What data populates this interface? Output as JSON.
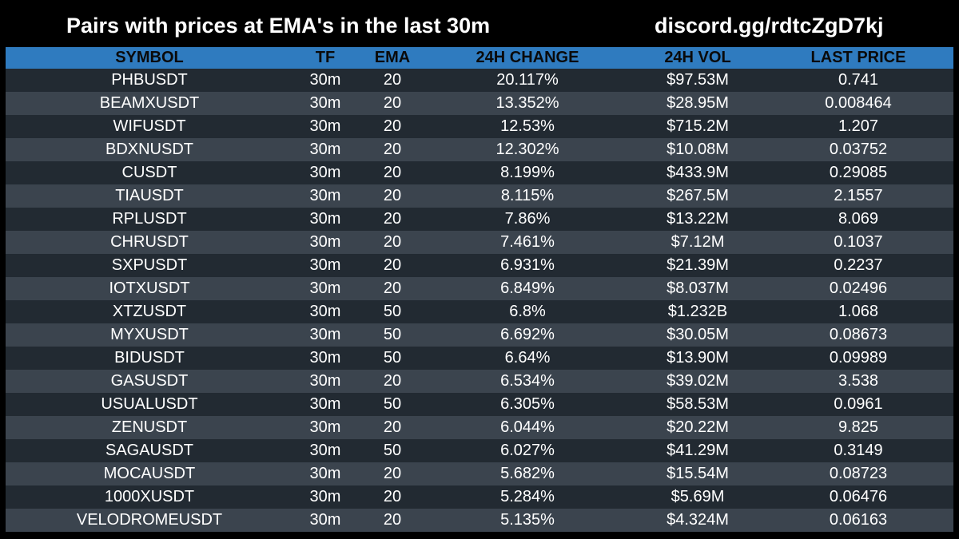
{
  "header": {
    "title": "Pairs with prices at EMA's in the last 30m",
    "discord": "discord.gg/rdtcZgD7kj"
  },
  "table": {
    "columns": [
      "SYMBOL",
      "TF",
      "EMA",
      "24H CHANGE",
      "24H VOL",
      "LAST PRICE"
    ],
    "rows": [
      [
        "PHBUSDT",
        "30m",
        "20",
        "20.117%",
        "$97.53M",
        "0.741"
      ],
      [
        "BEAMXUSDT",
        "30m",
        "20",
        "13.352%",
        "$28.95M",
        "0.008464"
      ],
      [
        "WIFUSDT",
        "30m",
        "20",
        "12.53%",
        "$715.2M",
        "1.207"
      ],
      [
        "BDXNUSDT",
        "30m",
        "20",
        "12.302%",
        "$10.08M",
        "0.03752"
      ],
      [
        "CUSDT",
        "30m",
        "20",
        "8.199%",
        "$433.9M",
        "0.29085"
      ],
      [
        "TIAUSDT",
        "30m",
        "20",
        "8.115%",
        "$267.5M",
        "2.1557"
      ],
      [
        "RPLUSDT",
        "30m",
        "20",
        "7.86%",
        "$13.22M",
        "8.069"
      ],
      [
        "CHRUSDT",
        "30m",
        "20",
        "7.461%",
        "$7.12M",
        "0.1037"
      ],
      [
        "SXPUSDT",
        "30m",
        "20",
        "6.931%",
        "$21.39M",
        "0.2237"
      ],
      [
        "IOTXUSDT",
        "30m",
        "20",
        "6.849%",
        "$8.037M",
        "0.02496"
      ],
      [
        "XTZUSDT",
        "30m",
        "50",
        "6.8%",
        "$1.232B",
        "1.068"
      ],
      [
        "MYXUSDT",
        "30m",
        "50",
        "6.692%",
        "$30.05M",
        "0.08673"
      ],
      [
        "BIDUSDT",
        "30m",
        "50",
        "6.64%",
        "$13.90M",
        "0.09989"
      ],
      [
        "GASUSDT",
        "30m",
        "20",
        "6.534%",
        "$39.02M",
        "3.538"
      ],
      [
        "USUALUSDT",
        "30m",
        "50",
        "6.305%",
        "$58.53M",
        "0.0961"
      ],
      [
        "ZENUSDT",
        "30m",
        "20",
        "6.044%",
        "$20.22M",
        "9.825"
      ],
      [
        "SAGAUSDT",
        "30m",
        "50",
        "6.027%",
        "$41.29M",
        "0.3149"
      ],
      [
        "MOCAUSDT",
        "30m",
        "20",
        "5.682%",
        "$15.54M",
        "0.08723"
      ],
      [
        "1000XUSDT",
        "30m",
        "20",
        "5.284%",
        "$5.69M",
        "0.06476"
      ],
      [
        "VELODROMEUSDT",
        "30m",
        "20",
        "5.135%",
        "$4.324M",
        "0.06163"
      ]
    ]
  },
  "colors": {
    "background": "#000000",
    "header_bar": "#2f7bbf",
    "row_dark": "#222a32",
    "row_light": "#3b444e",
    "text": "#ffffff"
  }
}
